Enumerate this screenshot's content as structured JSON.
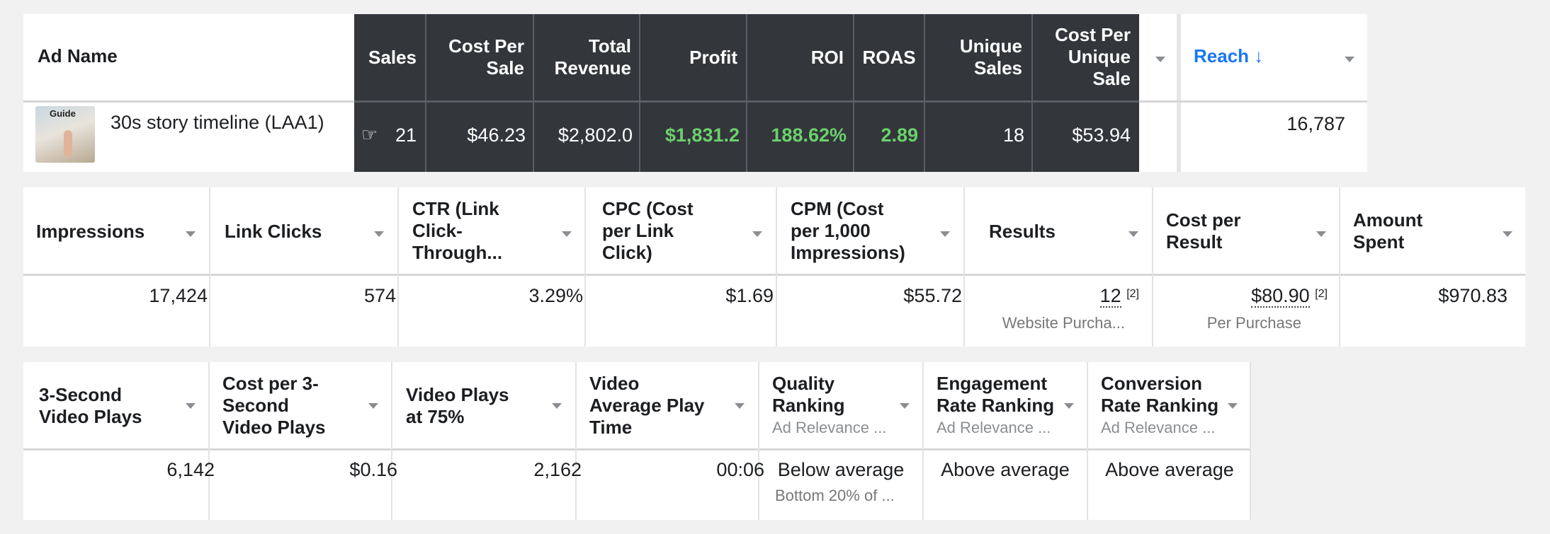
{
  "ad_table": {
    "headers": {
      "ad_name": "Ad Name",
      "sales": "Sales",
      "cost_per_sale": "Cost Per Sale",
      "total_revenue": "Total Revenue",
      "profit": "Profit",
      "roi": "ROI",
      "roas": "ROAS",
      "unique_sales": "Unique Sales",
      "cost_per_unique_sale": "Cost Per Unique Sale",
      "reach": "Reach",
      "reach_sort": "↓"
    },
    "row": {
      "thumbnail_text": "Guide",
      "ad_name": "30s story timeline (LAA1)",
      "sales": "21",
      "cost_per_sale": "$46.23",
      "total_revenue": "$2,802.0",
      "profit": "$1,831.2",
      "roi": "188.62%",
      "roas": "2.89",
      "unique_sales": "18",
      "cost_per_unique_sale": "$53.94",
      "reach": "16,787"
    },
    "colors": {
      "dark": "#33363b",
      "green": "#6bd16b",
      "link": "#1877f2"
    }
  },
  "delivery_table": {
    "headers": {
      "impressions": "Impressions",
      "link_clicks": "Link Clicks",
      "ctr_l1": "CTR (Link",
      "ctr_l2": "Click-",
      "ctr_l3": "Through...",
      "cpc_l1": "CPC (Cost",
      "cpc_l2": "per Link",
      "cpc_l3": "Click)",
      "cpm_l1": "CPM (Cost",
      "cpm_l2": "per 1,000",
      "cpm_l3": "Impressions)",
      "results": "Results",
      "cpr_l1": "Cost per",
      "cpr_l2": "Result",
      "amount_l1": "Amount",
      "amount_l2": "Spent"
    },
    "row": {
      "impressions": "17,424",
      "link_clicks": "574",
      "ctr": "3.29%",
      "cpc": "$1.69",
      "cpm": "$55.72",
      "results": "12",
      "results_note": "[2]",
      "results_sub": "Website Purcha...",
      "cost_per_result": "$80.90",
      "cost_per_result_note": "[2]",
      "cost_per_result_sub": "Per Purchase",
      "amount_spent": "$970.83"
    }
  },
  "video_table": {
    "headers": {
      "v3_l1": "3-Second",
      "v3_l2": "Video Plays",
      "cpv_l1": "Cost per 3-",
      "cpv_l2": "Second",
      "cpv_l3": "Video Plays",
      "v75_l1": "Video Plays",
      "v75_l2": "at 75%",
      "vapt_l1": "Video",
      "vapt_l2": "Average Play",
      "vapt_l3": "Time",
      "qr_l1": "Quality",
      "qr_l2": "Ranking",
      "qr_sub": "Ad Relevance ...",
      "er_l1": "Engagement",
      "er_l2": "Rate Ranking",
      "er_sub": "Ad Relevance ...",
      "cr_l1": "Conversion",
      "cr_l2": "Rate Ranking",
      "cr_sub": "Ad Relevance ..."
    },
    "row": {
      "video_plays_3s": "6,142",
      "cost_per_3s": "$0.16",
      "video_plays_75": "2,162",
      "avg_play_time": "00:06",
      "quality_ranking": "Below average",
      "quality_sub": "Bottom 20% of ...",
      "engagement_ranking": "Above average",
      "conversion_ranking": "Above average"
    }
  }
}
